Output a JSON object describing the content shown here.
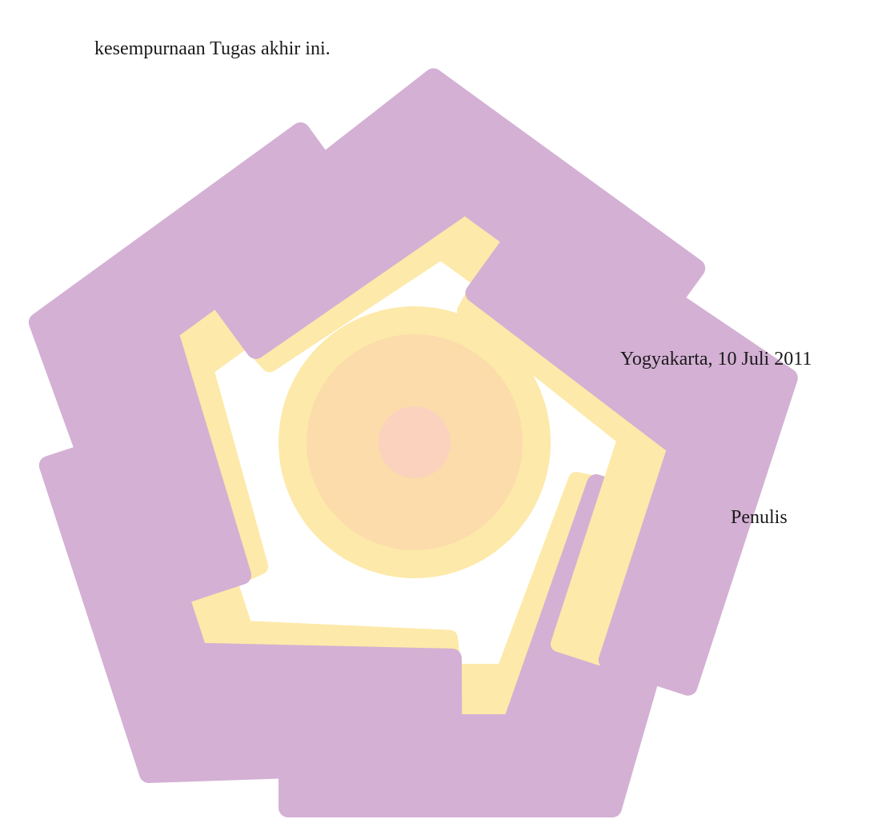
{
  "body": {
    "closing_line": "kesempurnaan Tugas akhir ini."
  },
  "signature": {
    "place_date": "Yogyakarta, 10 Juli 2011",
    "author": "Penulis"
  }
}
